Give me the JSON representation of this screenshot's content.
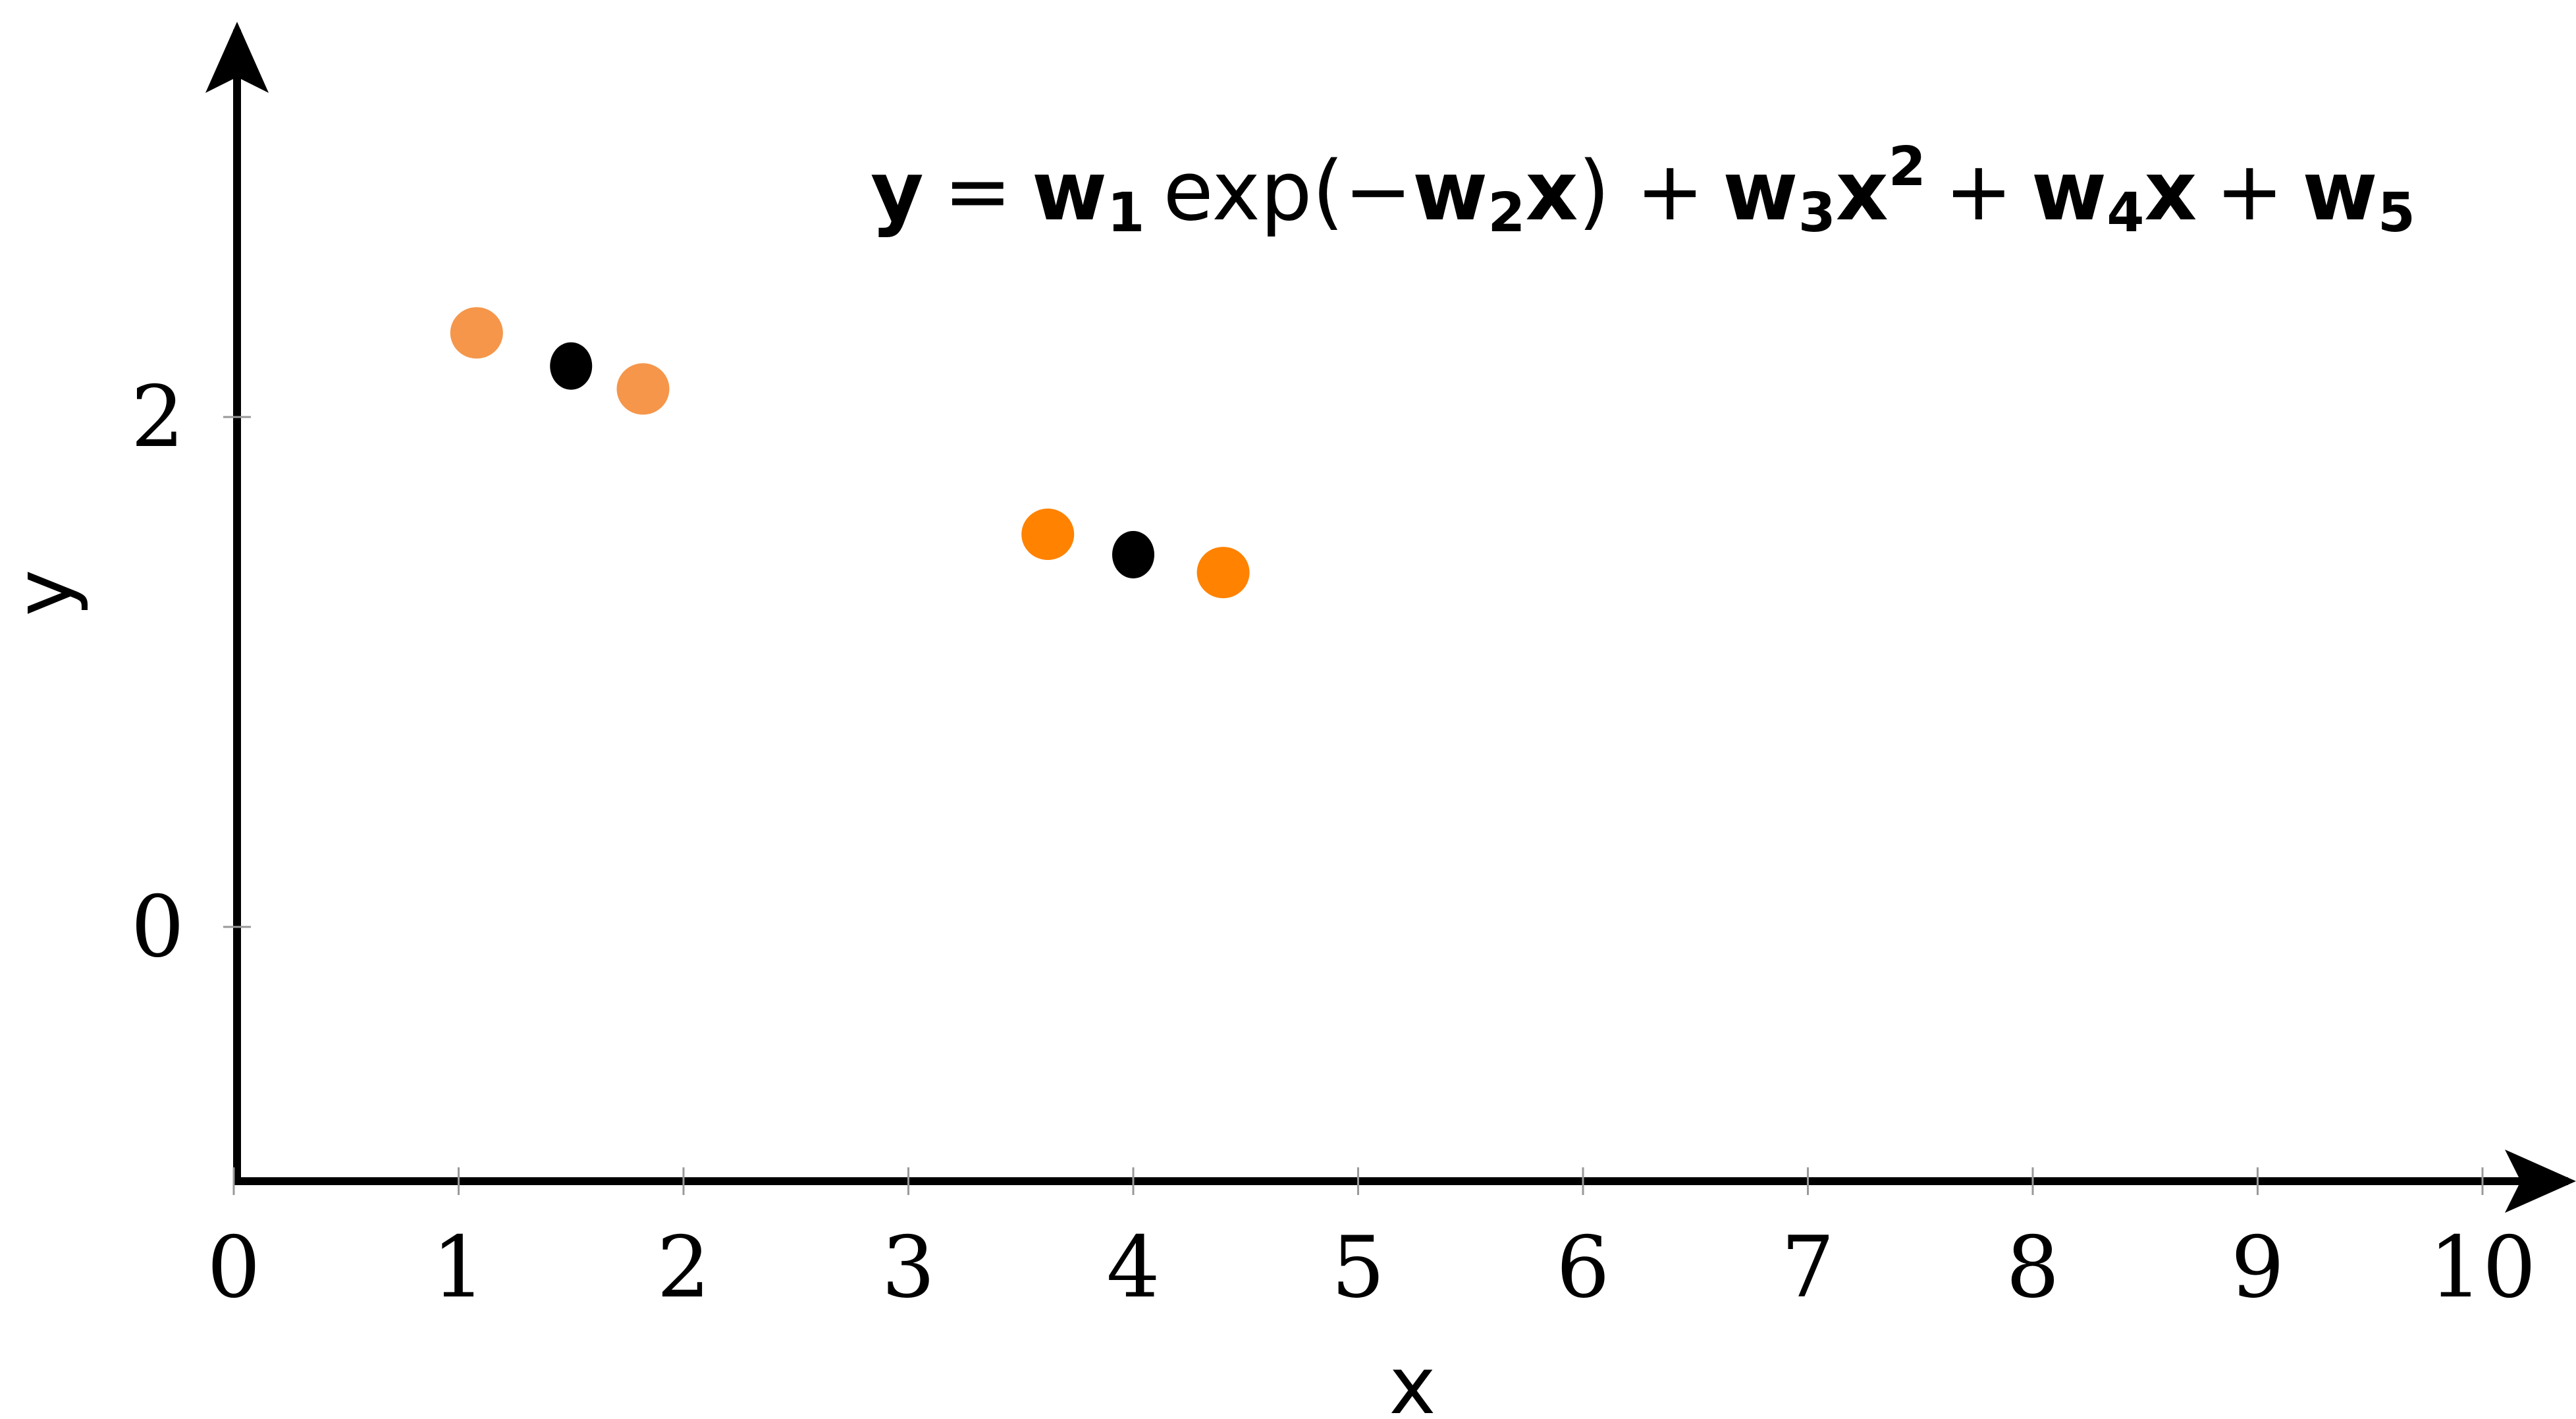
{
  "chart_data": {
    "type": "scatter",
    "title": "",
    "xlabel": "x",
    "ylabel": "y",
    "xlim": [
      0,
      10.2
    ],
    "ylim": [
      -1.0,
      3.5
    ],
    "xticks": [
      "0",
      "1",
      "2",
      "3",
      "4",
      "5",
      "6",
      "7",
      "8",
      "9",
      "10"
    ],
    "yticks": [
      "0",
      "2"
    ],
    "grid": false,
    "legend": "none",
    "annotation": {
      "y": "y",
      "eq": "=",
      "w1": "w",
      "s1": "1",
      "exp": "exp(−",
      "w2": "w",
      "s2": "2",
      "x1": "x",
      "close": ") +",
      "w3": "w",
      "s3": "3",
      "x2": "x",
      "sup2": "2",
      "plus2": "+",
      "w4": "w",
      "s4": "4",
      "x3": "x",
      "plus3": "+",
      "w5": "w",
      "s5": "5"
    },
    "series": [
      {
        "color": "#f5964a",
        "points": [
          [
            1.08,
            2.33
          ],
          [
            1.82,
            2.11
          ]
        ]
      },
      {
        "color": "#000000",
        "points": [
          [
            1.5,
            2.2
          ],
          [
            4.0,
            1.46
          ]
        ]
      },
      {
        "color": "#ff8200",
        "points": [
          [
            3.62,
            1.54
          ],
          [
            4.4,
            1.39
          ]
        ]
      }
    ]
  }
}
